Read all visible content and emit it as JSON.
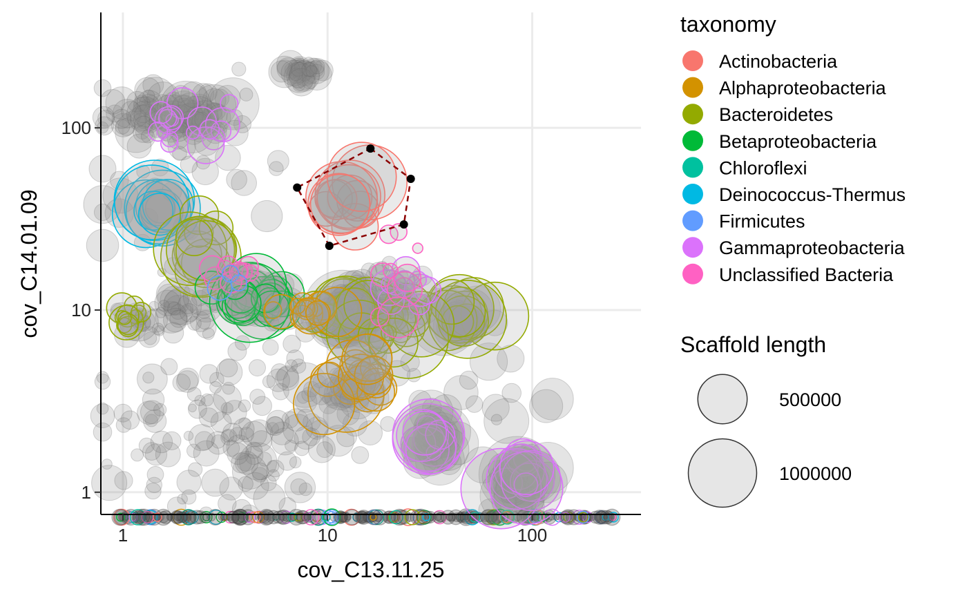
{
  "chart_data": {
    "type": "scatter",
    "title": "",
    "xlabel": "cov_C13.11.25",
    "ylabel": "cov_C14.01.09",
    "x_scale": "log10",
    "y_scale": "log10",
    "xlim": [
      0.78,
      340
    ],
    "ylim": [
      0.755,
      430
    ],
    "x_ticks": [
      {
        "value": 1,
        "label": "1"
      },
      {
        "value": 10,
        "label": "10"
      },
      {
        "value": 100,
        "label": "100"
      }
    ],
    "y_ticks": [
      {
        "value": 1,
        "label": "1"
      },
      {
        "value": 10,
        "label": "10"
      },
      {
        "value": 100,
        "label": "100"
      }
    ],
    "grid": true,
    "legend_taxonomy": {
      "title": "taxonomy",
      "placement": "right",
      "entries": [
        {
          "name": "Actinobacteria",
          "color": "#F8766D"
        },
        {
          "name": "Alphaproteobacteria",
          "color": "#D39200"
        },
        {
          "name": "Bacteroidetes",
          "color": "#93AA00"
        },
        {
          "name": "Betaproteobacteria",
          "color": "#00BA38"
        },
        {
          "name": "Chloroflexi",
          "color": "#00C19F"
        },
        {
          "name": "Deinococcus-Thermus",
          "color": "#00B9E3"
        },
        {
          "name": "Firmicutes",
          "color": "#619CFF"
        },
        {
          "name": "Gammaproteobacteria",
          "color": "#DB72FB"
        },
        {
          "name": "Unclassified Bacteria",
          "color": "#FF61C3"
        }
      ]
    },
    "legend_size": {
      "title": "Scaffold length",
      "entries": [
        {
          "value": 500000,
          "label": "500000"
        },
        {
          "value": 1000000,
          "label": "1000000"
        }
      ]
    },
    "selection_polygon": {
      "color": "#8B0000",
      "vertices": [
        [
          16.2,
          77
        ],
        [
          25.5,
          52.5
        ],
        [
          23.6,
          29.5
        ],
        [
          10.2,
          22.5
        ],
        [
          7.1,
          47
        ]
      ]
    },
    "clusters": [
      {
        "taxon": "Actinobacteria",
        "x": 13.3,
        "y": 38.5,
        "sx": 0.05,
        "sy": 0.05,
        "n": 14,
        "length": 420000
      },
      {
        "taxon": "Deinococcus-Thermus",
        "x": 1.45,
        "y": 35,
        "sx": 0.035,
        "sy": 0.035,
        "n": 12,
        "length": 480000
      },
      {
        "taxon": "Bacteroidetes",
        "x": 2.5,
        "y": 22,
        "sx": 0.06,
        "sy": 0.06,
        "n": 12,
        "length": 420000
      },
      {
        "taxon": "Bacteroidetes",
        "x": 46,
        "y": 9,
        "sx": 0.06,
        "sy": 0.04,
        "n": 12,
        "length": 480000
      },
      {
        "taxon": "Bacteroidetes",
        "x": 12,
        "y": 10,
        "sx": 0.06,
        "sy": 0.05,
        "n": 10,
        "length": 500000
      },
      {
        "taxon": "Bacteroidetes",
        "x": 20,
        "y": 8.3,
        "sx": 0.06,
        "sy": 0.05,
        "n": 18,
        "length": 220000
      },
      {
        "taxon": "Bacteroidetes",
        "x": 1.05,
        "y": 9.2,
        "sx": 0.04,
        "sy": 0.04,
        "n": 12,
        "length": 80000
      },
      {
        "taxon": "Betaproteobacteria",
        "x": 4.4,
        "y": 11.8,
        "sx": 0.07,
        "sy": 0.04,
        "n": 32,
        "length": 200000
      },
      {
        "taxon": "Alphaproteobacteria",
        "x": 14.5,
        "y": 3.9,
        "sx": 0.07,
        "sy": 0.07,
        "n": 24,
        "length": 170000
      },
      {
        "taxon": "Alphaproteobacteria",
        "x": 7.5,
        "y": 10,
        "sx": 0.06,
        "sy": 0.04,
        "n": 14,
        "length": 90000
      },
      {
        "taxon": "Gammaproteobacteria",
        "x": 32,
        "y": 1.85,
        "sx": 0.035,
        "sy": 0.035,
        "n": 12,
        "length": 160000
      },
      {
        "taxon": "Gammaproteobacteria",
        "x": 88,
        "y": 1.2,
        "sx": 0.05,
        "sy": 0.06,
        "n": 14,
        "length": 200000
      },
      {
        "taxon": "Gammaproteobacteria",
        "x": 1.9,
        "y": 108,
        "sx": 0.12,
        "sy": 0.05,
        "n": 18,
        "length": 60000
      },
      {
        "taxon": "Gammaproteobacteria",
        "x": 22,
        "y": 13,
        "sx": 0.07,
        "sy": 0.06,
        "n": 10,
        "length": 70000
      },
      {
        "taxon": "Unclassified Bacteria",
        "x": 3.7,
        "y": 16.5,
        "sx": 0.07,
        "sy": 0.03,
        "n": 12,
        "length": 60000
      },
      {
        "taxon": "Unclassified Bacteria",
        "x": 22.5,
        "y": 16,
        "sx": 0.06,
        "sy": 0.1,
        "n": 10,
        "length": 60000
      },
      {
        "taxon": "Firmicutes",
        "x": 3.5,
        "y": 14.5,
        "sx": 0.05,
        "sy": 0.03,
        "n": 3,
        "length": 40000
      }
    ],
    "unclassified_clusters": [
      {
        "x": 7.5,
        "y": 205,
        "sx": 0.05,
        "sy": 0.03,
        "n": 40,
        "length": 50000
      },
      {
        "x": 1.8,
        "y": 115,
        "sx": 0.17,
        "sy": 0.07,
        "n": 120,
        "length": 60000
      },
      {
        "x": 2.2,
        "y": 55,
        "sx": 0.25,
        "sy": 0.25,
        "n": 40,
        "length": 60000
      },
      {
        "x": 12.5,
        "y": 9.8,
        "sx": 0.05,
        "sy": 0.05,
        "n": 40,
        "length": 200000
      },
      {
        "x": 45,
        "y": 8.8,
        "sx": 0.05,
        "sy": 0.04,
        "n": 20,
        "length": 180000
      },
      {
        "x": 32,
        "y": 1.8,
        "sx": 0.06,
        "sy": 0.06,
        "n": 30,
        "length": 150000
      },
      {
        "x": 85,
        "y": 1.2,
        "sx": 0.06,
        "sy": 0.07,
        "n": 40,
        "length": 180000
      },
      {
        "x": 4.5,
        "y": 11.5,
        "sx": 0.12,
        "sy": 0.06,
        "n": 50,
        "length": 60000
      },
      {
        "x": 20,
        "y": 11,
        "sx": 0.1,
        "sy": 0.1,
        "n": 60,
        "length": 50000
      },
      {
        "x": 4.2,
        "y": 2.0,
        "sx": 0.25,
        "sy": 0.2,
        "n": 90,
        "length": 40000
      },
      {
        "x": 1.5,
        "y": 2.2,
        "sx": 0.2,
        "sy": 0.2,
        "n": 40,
        "length": 40000
      },
      {
        "x": 8.0,
        "y": 4.5,
        "sx": 0.3,
        "sy": 0.2,
        "n": 40,
        "length": 40000
      },
      {
        "x": 1.6,
        "y": 9.5,
        "sx": 0.12,
        "sy": 0.06,
        "n": 40,
        "length": 50000
      },
      {
        "x": 13.5,
        "y": 3.6,
        "sx": 0.08,
        "sy": 0.08,
        "n": 20,
        "length": 120000
      },
      {
        "x": 55,
        "y": 3.0,
        "sx": 0.2,
        "sy": 0.15,
        "n": 15,
        "length": 100000
      }
    ],
    "baseline_band": {
      "x_min": 0.95,
      "x_max": 250,
      "n": 300
    }
  }
}
